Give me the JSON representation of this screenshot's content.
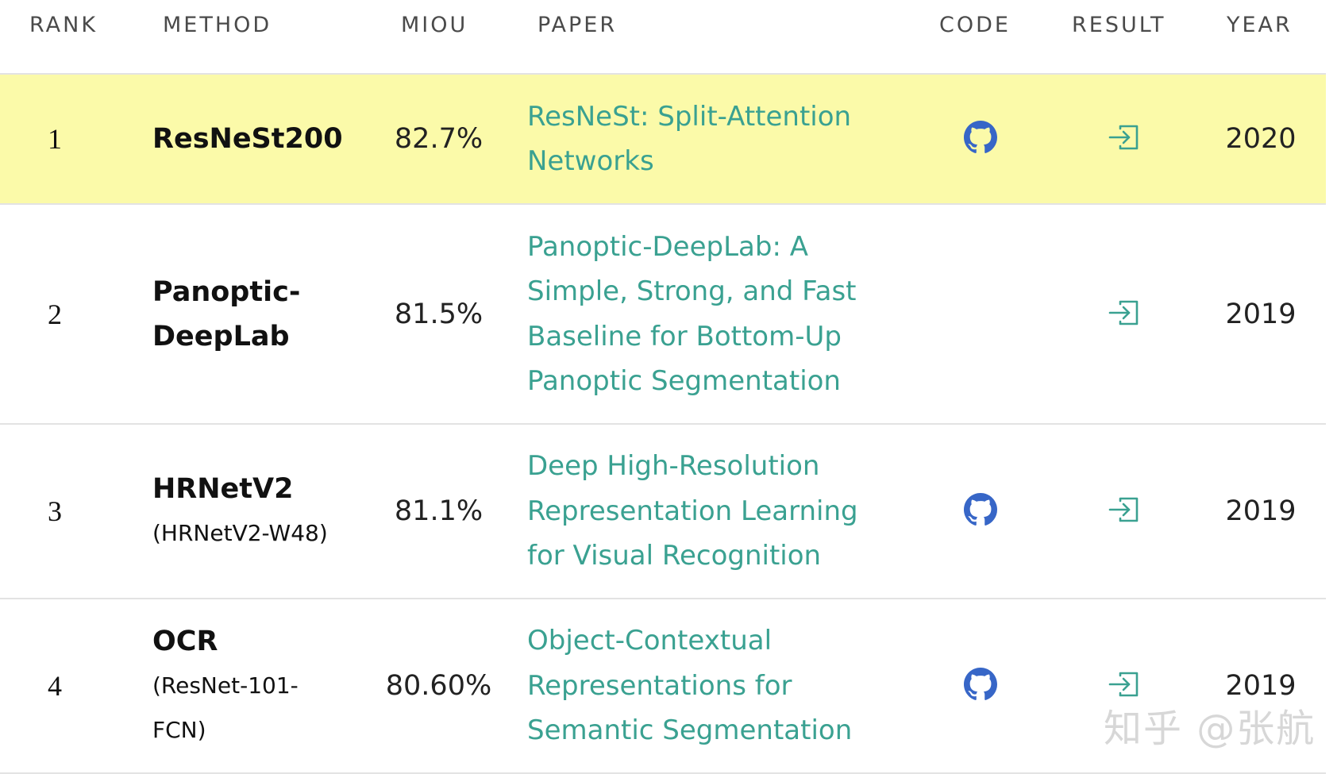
{
  "columns": {
    "rank": "RANK",
    "method": "METHOD",
    "miou": "MIOU",
    "paper": "PAPER",
    "code": "CODE",
    "result": "RESULT",
    "year": "YEAR"
  },
  "rows": [
    {
      "rank": "1",
      "method": "ResNeSt200",
      "method_sub": "",
      "miou": "82.7%",
      "paper": "ResNeSt: Split-Attention Networks",
      "has_code": true,
      "has_result": true,
      "year": "2020",
      "highlighted": true
    },
    {
      "rank": "2",
      "method": "Panoptic-DeepLab",
      "method_sub": "",
      "miou": "81.5%",
      "paper": "Panoptic-DeepLab: A Simple, Strong, and Fast Baseline for Bottom-Up Panoptic Segmentation",
      "has_code": false,
      "has_result": true,
      "year": "2019",
      "highlighted": false
    },
    {
      "rank": "3",
      "method": "HRNetV2",
      "method_sub": "(HRNetV2-W48)",
      "miou": "81.1%",
      "paper": "Deep High-Resolution Representation Learning for Visual Recognition",
      "has_code": true,
      "has_result": true,
      "year": "2019",
      "highlighted": false
    },
    {
      "rank": "4",
      "method": "OCR",
      "method_sub": "(ResNet-101-FCN)",
      "miou": "80.60%",
      "paper": "Object-Contextual Representations for Semantic Segmentation",
      "has_code": true,
      "has_result": true,
      "year": "2019",
      "highlighted": false
    }
  ],
  "icons": {
    "code": "github-icon",
    "result": "result-link-icon"
  },
  "colors": {
    "highlight": "#fbfaa9",
    "paper_link": "#3aa191",
    "github": "#3766c7",
    "result_icon": "#3aa191"
  },
  "watermark": "知乎 @张航"
}
